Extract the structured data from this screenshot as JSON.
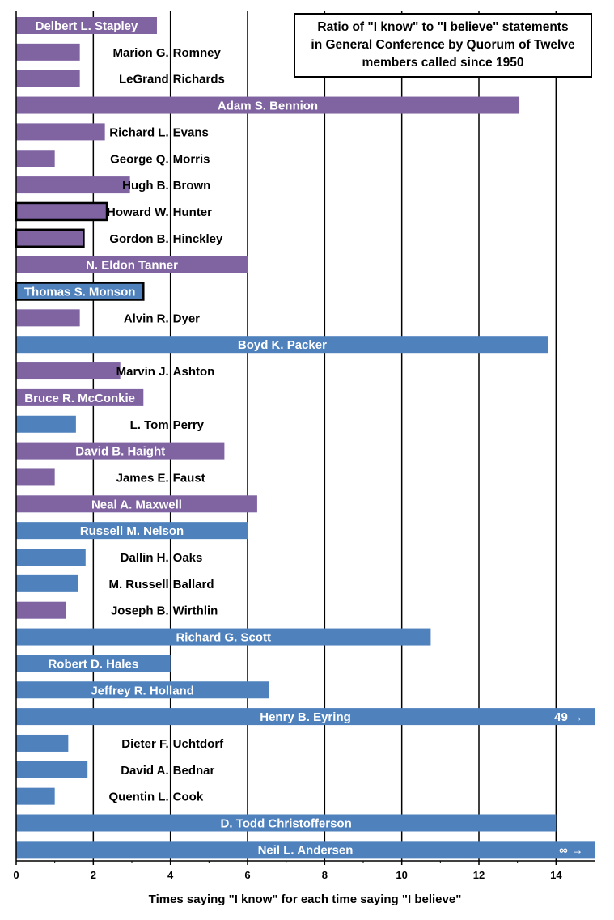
{
  "chart_data": {
    "type": "bar",
    "orientation": "horizontal",
    "title_lines": [
      "Ratio of \"I know\" to \"I believe\" statements",
      "in General Conference by Quorum of Twelve",
      "members called since 1950"
    ],
    "xlabel": "Times saying \"I know\"  for each time saying \"I believe\"",
    "ylabel": "",
    "xlim": [
      0,
      15
    ],
    "xticks": [
      "0",
      "2",
      "4",
      "6",
      "8",
      "10",
      "12",
      "14"
    ],
    "grid": "vertical",
    "colors": {
      "purple": "#8064a2",
      "blue": "#4f81bd"
    },
    "bars": [
      {
        "name": "Delbert L. Stapley",
        "value": 3.65,
        "color": "purple",
        "label_pos": "inside",
        "outlined": false
      },
      {
        "name": "Marion G. Romney",
        "value": 1.65,
        "color": "purple",
        "label_pos": "outside",
        "outlined": false
      },
      {
        "name": "LeGrand Richards",
        "value": 1.65,
        "color": "purple",
        "label_pos": "outside",
        "outlined": false
      },
      {
        "name": "Adam S. Bennion",
        "value": 13.05,
        "color": "purple",
        "label_pos": "inside",
        "outlined": false
      },
      {
        "name": "Richard L. Evans",
        "value": 2.3,
        "color": "purple",
        "label_pos": "outside",
        "outlined": false
      },
      {
        "name": "George Q. Morris",
        "value": 1.0,
        "color": "purple",
        "label_pos": "outside",
        "outlined": false
      },
      {
        "name": "Hugh B. Brown",
        "value": 2.95,
        "color": "purple",
        "label_pos": "outside",
        "outlined": false
      },
      {
        "name": "Howard W. Hunter",
        "value": 2.35,
        "color": "purple",
        "label_pos": "outside",
        "outlined": true
      },
      {
        "name": "Gordon B. Hinckley",
        "value": 1.75,
        "color": "purple",
        "label_pos": "outside",
        "outlined": true
      },
      {
        "name": "N. Eldon Tanner",
        "value": 6.0,
        "color": "purple",
        "label_pos": "inside",
        "outlined": false
      },
      {
        "name": "Thomas S. Monson",
        "value": 3.3,
        "color": "blue",
        "label_pos": "inside",
        "outlined": true
      },
      {
        "name": "Alvin R. Dyer",
        "value": 1.65,
        "color": "purple",
        "label_pos": "outside",
        "outlined": false
      },
      {
        "name": "Boyd K. Packer",
        "value": 13.8,
        "color": "blue",
        "label_pos": "inside",
        "outlined": false
      },
      {
        "name": "Marvin J. Ashton",
        "value": 2.7,
        "color": "purple",
        "label_pos": "outside",
        "outlined": false
      },
      {
        "name": "Bruce R. McConkie",
        "value": 3.3,
        "color": "purple",
        "label_pos": "inside",
        "outlined": false
      },
      {
        "name": "L. Tom Perry",
        "value": 1.55,
        "color": "blue",
        "label_pos": "outside",
        "outlined": false
      },
      {
        "name": "David B. Haight",
        "value": 5.4,
        "color": "purple",
        "label_pos": "inside",
        "outlined": false
      },
      {
        "name": "James E. Faust",
        "value": 1.0,
        "color": "purple",
        "label_pos": "outside",
        "outlined": false
      },
      {
        "name": "Neal A. Maxwell",
        "value": 6.25,
        "color": "purple",
        "label_pos": "inside",
        "outlined": false
      },
      {
        "name": "Russell M. Nelson",
        "value": 6.0,
        "color": "blue",
        "label_pos": "inside",
        "outlined": false
      },
      {
        "name": "Dallin H. Oaks",
        "value": 1.8,
        "color": "blue",
        "label_pos": "outside",
        "outlined": false
      },
      {
        "name": "M. Russell Ballard",
        "value": 1.6,
        "color": "blue",
        "label_pos": "outside",
        "outlined": false
      },
      {
        "name": "Joseph B. Wirthlin",
        "value": 1.3,
        "color": "purple",
        "label_pos": "outside",
        "outlined": false
      },
      {
        "name": "Richard G. Scott",
        "value": 10.75,
        "color": "blue",
        "label_pos": "inside",
        "outlined": false
      },
      {
        "name": "Robert D. Hales",
        "value": 4.0,
        "color": "blue",
        "label_pos": "inside",
        "outlined": false
      },
      {
        "name": "Jeffrey R. Holland",
        "value": 6.55,
        "color": "blue",
        "label_pos": "inside",
        "outlined": false
      },
      {
        "name": "Henry B. Eyring",
        "value": 49,
        "color": "blue",
        "label_pos": "inside",
        "outlined": false,
        "overflow_label": "49 →"
      },
      {
        "name": "Dieter F. Uchtdorf",
        "value": 1.35,
        "color": "blue",
        "label_pos": "outside",
        "outlined": false
      },
      {
        "name": "David A. Bednar",
        "value": 1.85,
        "color": "blue",
        "label_pos": "outside",
        "outlined": false
      },
      {
        "name": "Quentin L. Cook",
        "value": 1.0,
        "color": "blue",
        "label_pos": "outside",
        "outlined": false
      },
      {
        "name": "D. Todd Christofferson",
        "value": 14.0,
        "color": "blue",
        "label_pos": "inside",
        "outlined": false
      },
      {
        "name": "Neil L. Andersen",
        "value": "∞",
        "color": "blue",
        "label_pos": "inside",
        "outlined": false,
        "overflow_label": "∞ →"
      }
    ]
  }
}
